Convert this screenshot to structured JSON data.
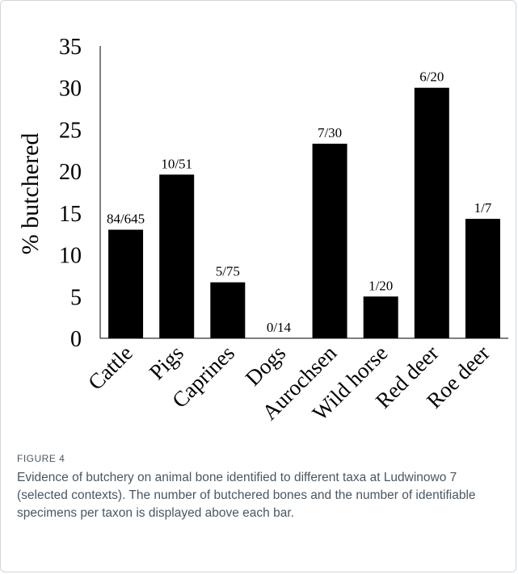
{
  "chart_data": {
    "type": "bar",
    "categories": [
      "Cattle",
      "Pigs",
      "Caprines",
      "Dogs",
      "Aurochsen",
      "Wild horse",
      "Red deer",
      "Roe deer"
    ],
    "values": [
      13.0,
      19.6,
      6.7,
      0,
      23.3,
      5.0,
      30.0,
      14.3
    ],
    "data_labels": [
      "84/645",
      "10/51",
      "5/75",
      "0/14",
      "7/30",
      "1/20",
      "6/20",
      "1/7"
    ],
    "ylabel": "% butchered",
    "xlabel": "",
    "ylim": [
      0,
      35
    ],
    "yticks": [
      0,
      5,
      10,
      15,
      20,
      25,
      30,
      35
    ],
    "bar_color": "#000000",
    "grid": false,
    "legend": "none"
  },
  "caption": {
    "label": "FIGURE 4",
    "text": "Evidence of butchery on animal bone identified to different taxa at Ludwinowo 7 (selected contexts). The number of butchered bones and the number of identifiable specimens per taxon is displayed above each bar."
  }
}
